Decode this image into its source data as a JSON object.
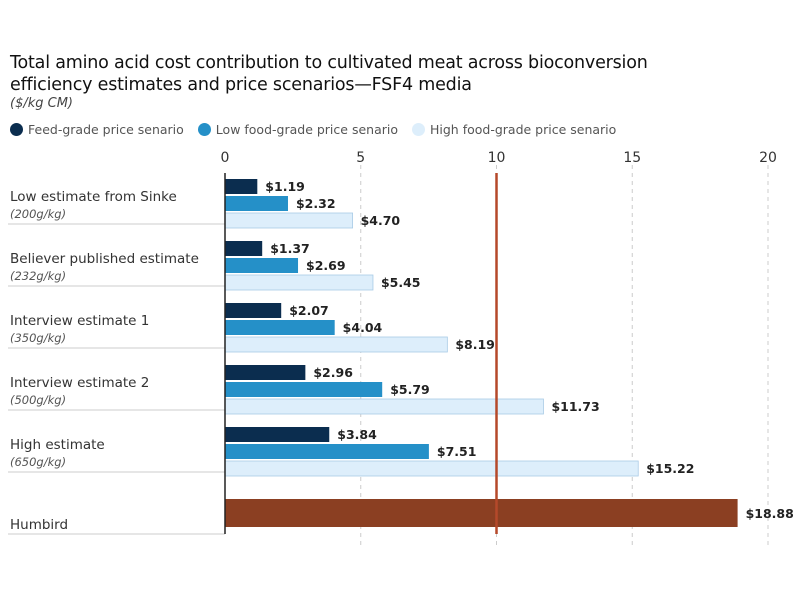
{
  "chart_data": {
    "type": "bar",
    "orientation": "horizontal",
    "title": "Total amino acid cost contribution to cultivated meat across bioconversion efficiency estimates and price scenarios—FSF4 media",
    "subtitle": "($/kg CM)",
    "xlim": [
      0,
      20
    ],
    "xticks": [
      "0",
      "5",
      "10",
      "15",
      "20"
    ],
    "grid": "vertical dashed",
    "legend_position": "top",
    "reference_line": {
      "value": 10,
      "color": "#b5492a"
    },
    "categories": [
      {
        "label": "Low estimate from Sinke",
        "sub": "(200g/kg)"
      },
      {
        "label": "Believer published estimate",
        "sub": "(232g/kg)"
      },
      {
        "label": "Interview estimate 1",
        "sub": "(350g/kg)"
      },
      {
        "label": "Interview estimate 2",
        "sub": "(500g/kg)"
      },
      {
        "label": "High estimate",
        "sub": "(650g/kg)"
      }
    ],
    "series": [
      {
        "name": "Feed-grade price senario",
        "color": "#0b2d4f",
        "values": [
          1.19,
          1.37,
          2.07,
          2.96,
          3.84
        ],
        "labels": [
          "$1.19",
          "$1.37",
          "$2.07",
          "$2.96",
          "$3.84"
        ]
      },
      {
        "name": "Low food-grade price senario",
        "color": "#2590c8",
        "values": [
          2.32,
          2.69,
          4.04,
          5.79,
          7.51
        ],
        "labels": [
          "$2.32",
          "$2.69",
          "$4.04",
          "$5.79",
          "$7.51"
        ]
      },
      {
        "name": "High food-grade price senario",
        "color": "#ddeefb",
        "values": [
          4.7,
          5.45,
          8.19,
          11.73,
          15.22
        ],
        "labels": [
          "$4.70",
          "$5.45",
          "$8.19",
          "$11.73",
          "$15.22"
        ]
      }
    ],
    "single": {
      "label": "Humbird",
      "value": 18.88,
      "value_label": "$18.88",
      "color": "#8b3f22"
    }
  }
}
